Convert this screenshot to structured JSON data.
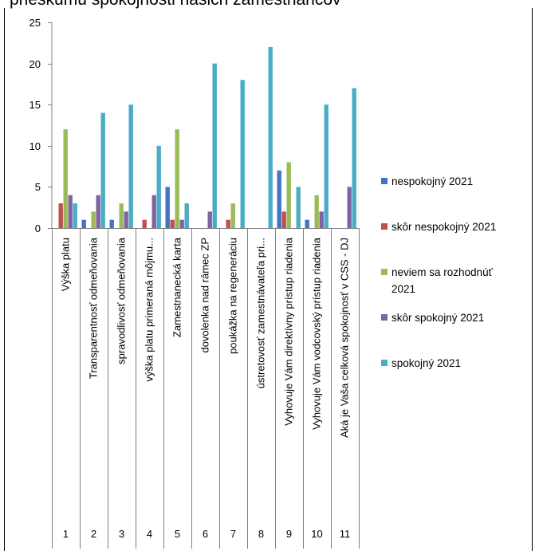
{
  "page": {
    "title": "prieskumu spokojnosti našich zamestnancov"
  },
  "chart_data": {
    "type": "bar",
    "ylim": [
      0,
      25
    ],
    "yticks": [
      0,
      5,
      10,
      15,
      20,
      25
    ],
    "grid": false,
    "legend_position": "right",
    "categories": [
      "Výška platu",
      "Transparentnosť odmeňovania",
      "spravodlivosť odmeňovania",
      "výška platu primeraná môjmu...",
      "Zamestnanecká karta",
      "dovolenka nad rámec ZP",
      "poukážka na regeneráciu",
      "ústretovosť zamestnávateľa pri...",
      "Vyhovuje Vám direktívny prístup riadenia",
      "Vyhovuje Vám vodcovský prístup riadenia",
      "Aká je Vaša celková spokojnosť v CSS - DJ"
    ],
    "category_numbers": [
      "1",
      "2",
      "3",
      "4",
      "5",
      "6",
      "7",
      "8",
      "9",
      "10",
      "11"
    ],
    "series": [
      {
        "name": "nespokojný 2021",
        "legend_lines": [
          "nespokojný 2021"
        ],
        "color": "#4472C4",
        "values": [
          0,
          1,
          1,
          0,
          5,
          0,
          0,
          0,
          7,
          1,
          0
        ]
      },
      {
        "name": "skôr nespokojný 2021",
        "legend_lines": [
          "skôr nespokojný 2021"
        ],
        "color": "#C0504D",
        "values": [
          3,
          0,
          0,
          1,
          1,
          0,
          1,
          0,
          2,
          0,
          0
        ]
      },
      {
        "name": "neviem sa rozhodnúť 2021",
        "legend_lines": [
          "neviem sa rozhodnúť",
          "2021"
        ],
        "color": "#9BBB59",
        "values": [
          12,
          2,
          3,
          0,
          12,
          0,
          3,
          0,
          8,
          4,
          0
        ]
      },
      {
        "name": "skôr spokojný 2021",
        "legend_lines": [
          "skôr spokojný 2021"
        ],
        "color": "#8064A2",
        "values": [
          4,
          4,
          2,
          4,
          1,
          2,
          0,
          0,
          0,
          2,
          5
        ]
      },
      {
        "name": "spokojný 2021",
        "legend_lines": [
          "spokojný 2021"
        ],
        "color": "#4BACC6",
        "values": [
          3,
          14,
          15,
          10,
          3,
          20,
          18,
          22,
          5,
          15,
          17
        ]
      }
    ]
  }
}
